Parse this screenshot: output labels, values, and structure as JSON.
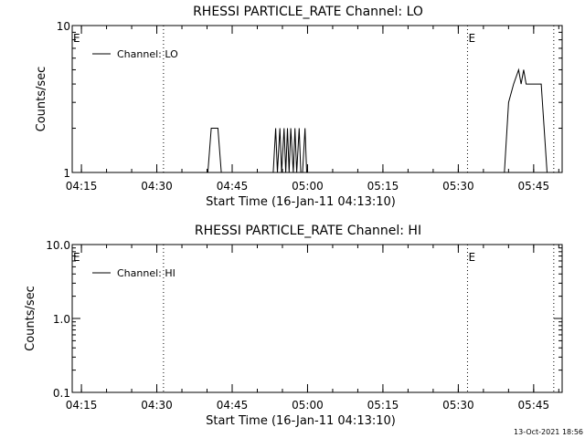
{
  "footer": {
    "timestamp": "13-Oct-2021 18:56"
  },
  "chart_data": [
    {
      "type": "line",
      "title": "RHESSI PARTICLE_RATE Channel: LO",
      "xlabel": "Start Time (16-Jan-11 04:13:10)",
      "ylabel": "Counts/sec",
      "ylim": [
        1,
        10
      ],
      "y_scale": "log",
      "y_ticks": [
        1,
        10
      ],
      "y_tick_labels": [
        "1",
        "10"
      ],
      "xlim": [
        "04:13:10",
        "05:50:40"
      ],
      "x_ticks": [
        "04:15",
        "04:30",
        "04:45",
        "05:00",
        "05:15",
        "05:30",
        "05:45"
      ],
      "legend": {
        "placement": "top-left",
        "label": "Channel: LO"
      },
      "eclipse_markers": [
        {
          "time": "04:13:10",
          "label": "E"
        },
        {
          "time": "04:31:20",
          "label": ""
        },
        {
          "time": "05:31:50",
          "label": "E"
        },
        {
          "time": "05:49:00",
          "label": ""
        }
      ],
      "series": [
        {
          "name": "Channel: LO",
          "color": "#000000",
          "points": [
            [
              "04:13:10",
              1
            ],
            [
              "04:40:10",
              1
            ],
            [
              "04:40:50",
              2
            ],
            [
              "04:42:10",
              2
            ],
            [
              "04:42:50",
              1
            ],
            [
              "04:53:10",
              1
            ],
            [
              "04:53:40",
              2
            ],
            [
              "04:54:00",
              1
            ],
            [
              "04:54:30",
              2
            ],
            [
              "04:54:50",
              1
            ],
            [
              "04:55:20",
              2
            ],
            [
              "04:55:40",
              1
            ],
            [
              "04:56:00",
              2
            ],
            [
              "04:56:20",
              1
            ],
            [
              "04:56:40",
              2
            ],
            [
              "04:57:10",
              1
            ],
            [
              "04:57:30",
              2
            ],
            [
              "04:57:50",
              1
            ],
            [
              "04:58:20",
              2
            ],
            [
              "04:58:40",
              1
            ],
            [
              "04:59:00",
              1
            ],
            [
              "04:59:30",
              2
            ],
            [
              "04:59:50",
              1
            ],
            [
              "05:39:10",
              1
            ],
            [
              "05:40:00",
              3
            ],
            [
              "05:41:00",
              4
            ],
            [
              "05:42:00",
              5
            ],
            [
              "05:42:30",
              4
            ],
            [
              "05:43:00",
              5
            ],
            [
              "05:43:30",
              4
            ],
            [
              "05:44:10",
              4
            ],
            [
              "05:45:30",
              4
            ],
            [
              "05:46:30",
              4
            ],
            [
              "05:47:40",
              1
            ],
            [
              "05:49:00",
              1
            ]
          ]
        }
      ]
    },
    {
      "type": "line",
      "title": "RHESSI PARTICLE_RATE Channel: HI",
      "xlabel": "Start Time (16-Jan-11 04:13:10)",
      "ylabel": "Counts/sec",
      "ylim": [
        0.1,
        10
      ],
      "y_scale": "log",
      "y_ticks": [
        0.1,
        1,
        10
      ],
      "y_tick_labels": [
        "0.1",
        "1.0",
        "10.0"
      ],
      "xlim": [
        "04:13:10",
        "05:50:40"
      ],
      "x_ticks": [
        "04:15",
        "04:30",
        "04:45",
        "05:00",
        "05:15",
        "05:30",
        "05:45"
      ],
      "legend": {
        "placement": "top-left",
        "label": "Channel: HI"
      },
      "eclipse_markers": [
        {
          "time": "04:13:10",
          "label": "E"
        },
        {
          "time": "04:31:20",
          "label": ""
        },
        {
          "time": "05:31:50",
          "label": "E"
        },
        {
          "time": "05:49:00",
          "label": ""
        }
      ],
      "series": [
        {
          "name": "Channel: HI",
          "color": "#000000",
          "points": []
        }
      ]
    }
  ]
}
